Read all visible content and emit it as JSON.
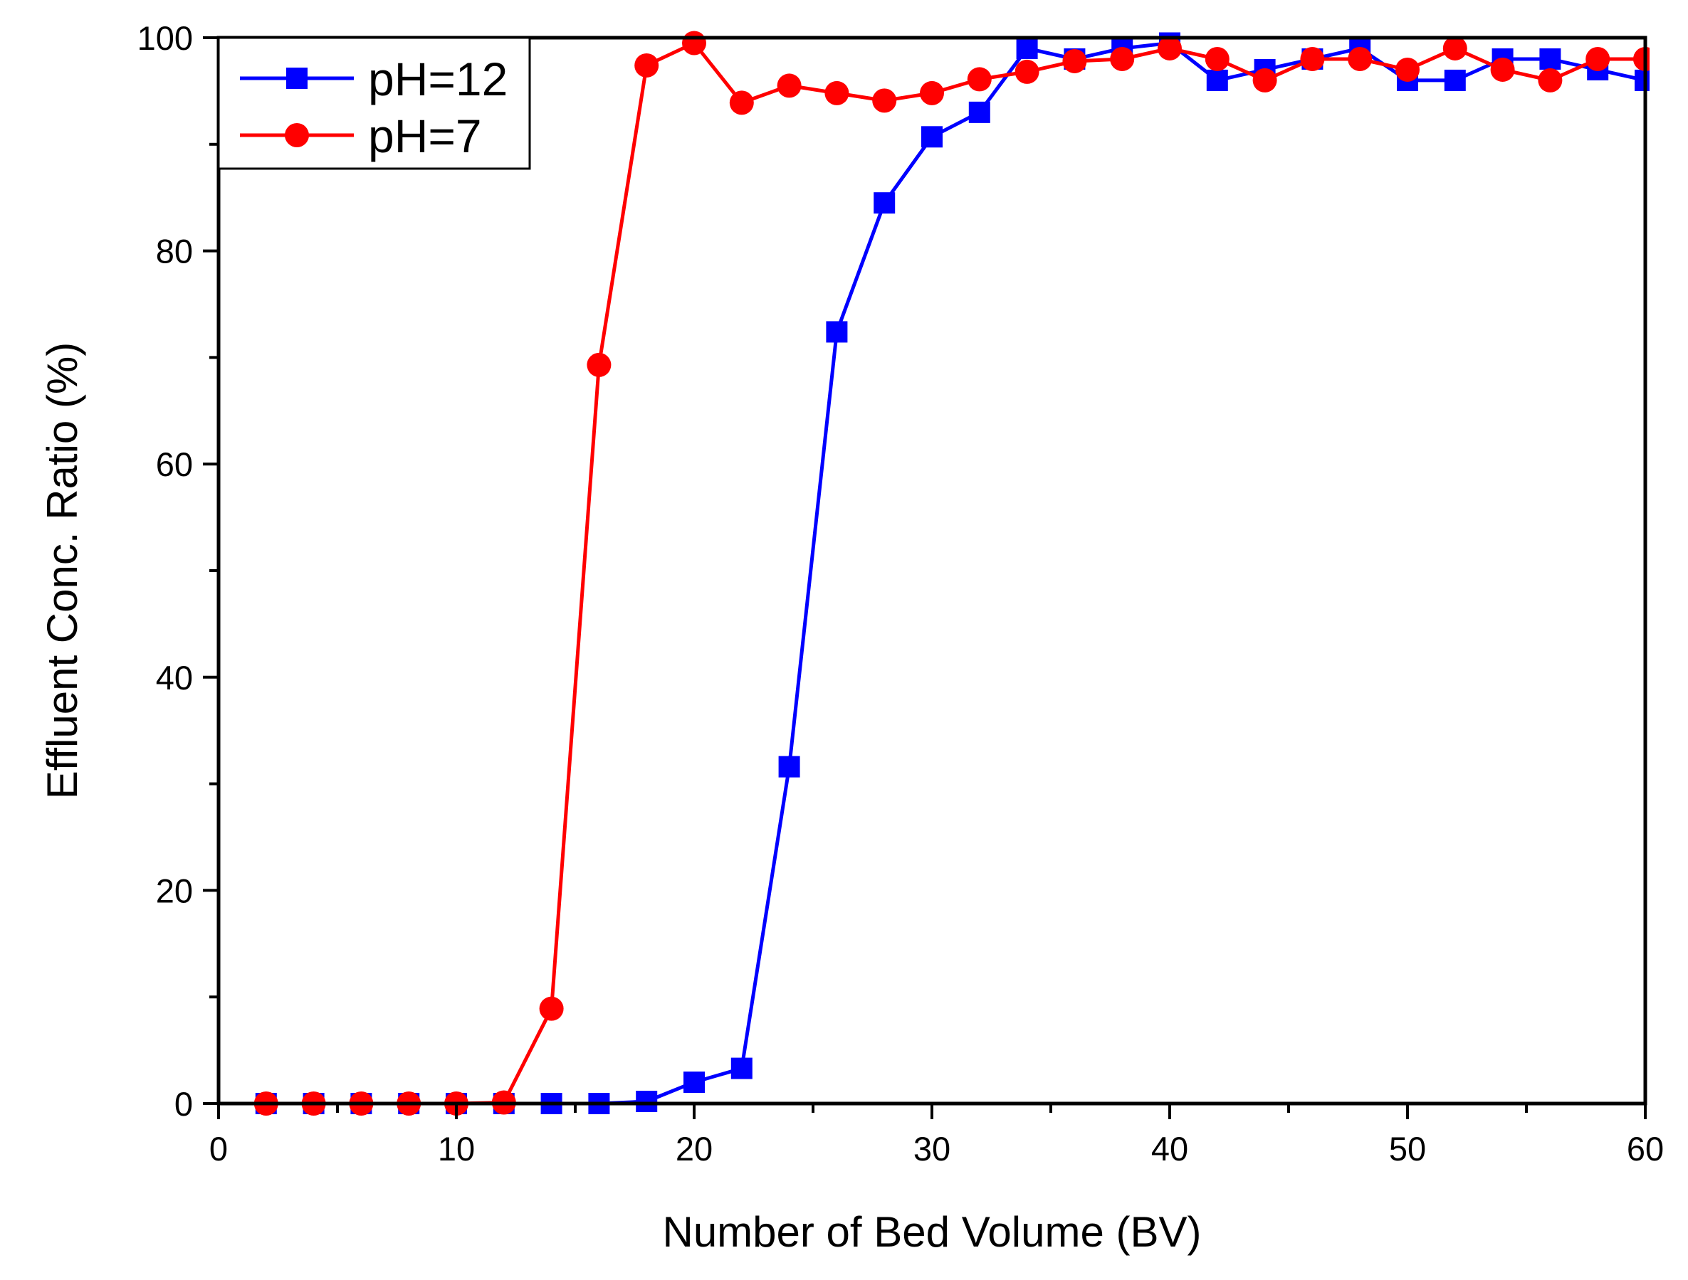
{
  "chart_data": {
    "type": "line",
    "title": "",
    "xlabel": "Number of Bed Volume (BV)",
    "ylabel": "Effluent Conc. Ratio (%)",
    "xlim": [
      0,
      60
    ],
    "ylim": [
      0,
      100
    ],
    "x_major_ticks": [
      0,
      10,
      20,
      30,
      40,
      50,
      60
    ],
    "x_tick_labels": [
      "0",
      "10",
      "20",
      "30",
      "40",
      "50",
      "60"
    ],
    "x_minor_ticks": [
      5,
      15,
      25,
      35,
      45,
      55
    ],
    "y_major_ticks": [
      0,
      20,
      40,
      60,
      80,
      100
    ],
    "y_tick_labels": [
      "0",
      "20",
      "40",
      "60",
      "80",
      "100"
    ],
    "y_minor_ticks": [
      10,
      30,
      50,
      70,
      90
    ],
    "grid": false,
    "legend_position": "top-left",
    "series": [
      {
        "name": "pH=12",
        "color": "#0000ff",
        "marker": "square",
        "x": [
          2,
          4,
          6,
          8,
          10,
          12,
          14,
          16,
          18,
          20,
          22,
          24,
          26,
          28,
          30,
          32,
          34,
          36,
          38,
          40,
          42,
          44,
          46,
          48,
          50,
          52,
          54,
          56,
          58,
          60
        ],
        "y": [
          0,
          0,
          0,
          0,
          0,
          0,
          0,
          0,
          0.2,
          2,
          3.3,
          31.6,
          72.4,
          84.5,
          90.7,
          93,
          99,
          98,
          99,
          99.5,
          96,
          97,
          98,
          99,
          96,
          96,
          98,
          98,
          97,
          96
        ]
      },
      {
        "name": "pH=7",
        "color": "#ff0000",
        "marker": "circle",
        "x": [
          2,
          4,
          6,
          8,
          10,
          12,
          14,
          16,
          18,
          20,
          22,
          24,
          26,
          28,
          30,
          32,
          34,
          36,
          38,
          40,
          42,
          44,
          46,
          48,
          50,
          52,
          54,
          56,
          58,
          60
        ],
        "y": [
          0,
          0,
          0,
          0,
          0,
          0.1,
          8.9,
          69.3,
          97.4,
          99.5,
          93.9,
          95.5,
          94.8,
          94.1,
          94.8,
          96.1,
          96.8,
          97.8,
          98,
          99,
          98,
          96,
          98,
          98,
          97,
          99,
          97,
          96,
          98,
          98
        ]
      }
    ]
  }
}
